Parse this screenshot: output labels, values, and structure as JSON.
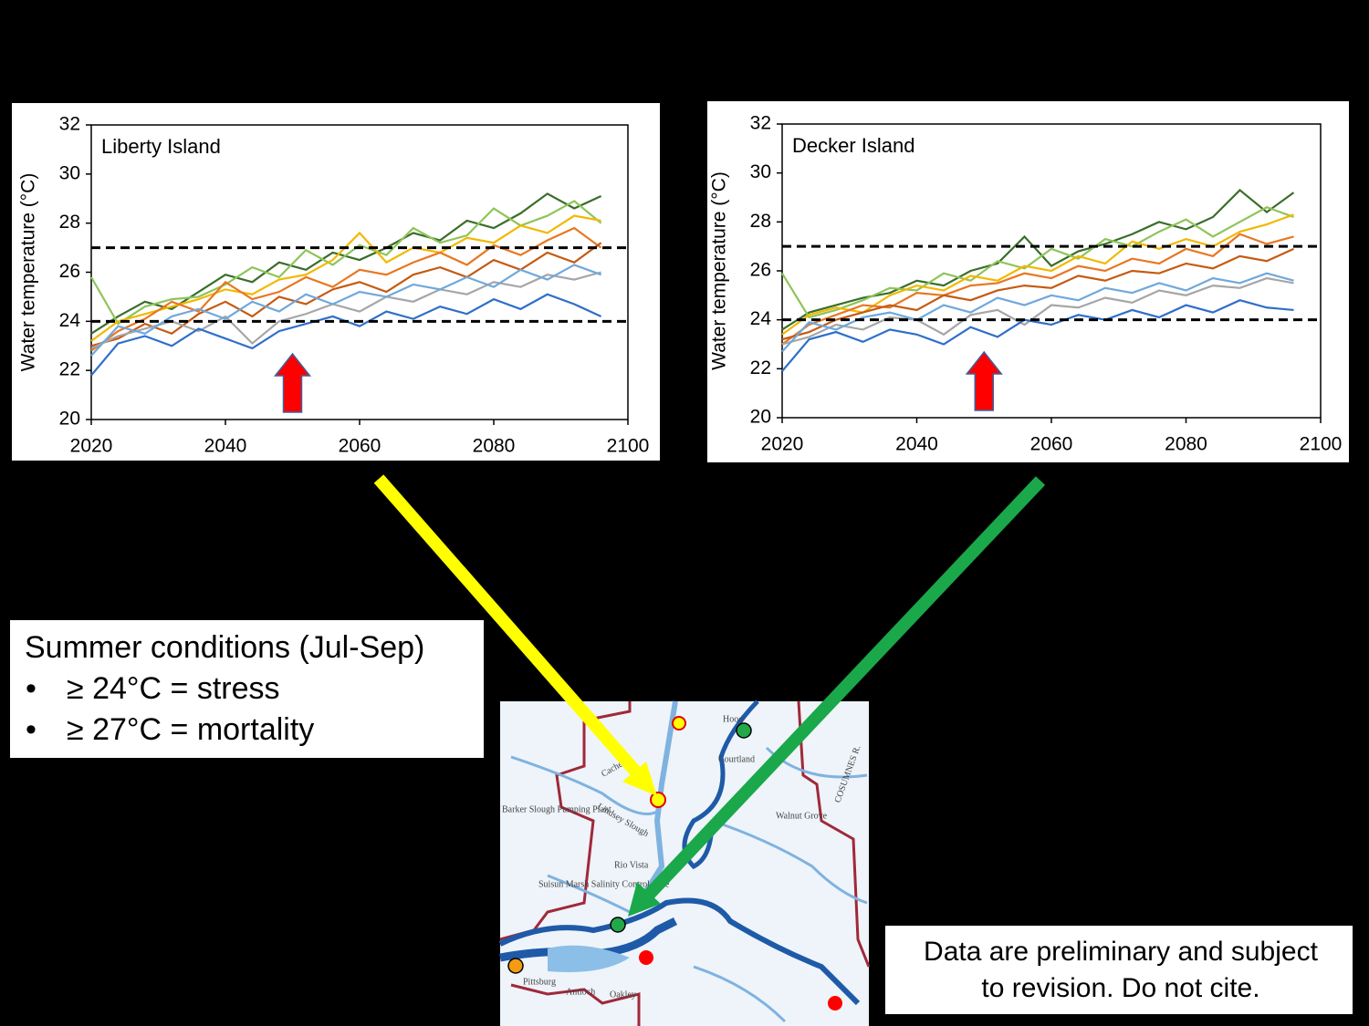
{
  "chart_data": [
    {
      "type": "line",
      "title": "Liberty Island",
      "y_label": "Water temperature (°C)",
      "x": [
        2020,
        2024,
        2028,
        2032,
        2036,
        2040,
        2044,
        2048,
        2052,
        2056,
        2060,
        2064,
        2068,
        2072,
        2076,
        2080,
        2084,
        2088,
        2092,
        2096
      ],
      "xlim": [
        2020,
        2100
      ],
      "xticks": [
        2020,
        2040,
        2060,
        2080,
        2100
      ],
      "ylim": [
        20,
        32
      ],
      "yticks": [
        20,
        22,
        24,
        26,
        28,
        30,
        32
      ],
      "hlines": [
        27,
        24
      ],
      "arrow_x": 2050,
      "series": [
        {
          "color": "#3a6e2a",
          "values": [
            23.5,
            24.2,
            24.8,
            24.5,
            25.2,
            25.9,
            25.6,
            26.4,
            26.1,
            26.8,
            26.5,
            27.0,
            27.6,
            27.3,
            28.1,
            27.8,
            28.4,
            29.2,
            28.6,
            29.1
          ]
        },
        {
          "color": "#8fc45a",
          "values": [
            25.8,
            23.9,
            24.6,
            24.9,
            25.0,
            25.5,
            26.2,
            25.8,
            26.9,
            26.3,
            27.1,
            26.7,
            27.8,
            27.2,
            27.5,
            28.6,
            27.9,
            28.3,
            28.9,
            28.0
          ]
        },
        {
          "color": "#f2b800",
          "values": [
            23.2,
            24.0,
            24.3,
            24.6,
            24.9,
            25.3,
            25.1,
            25.7,
            25.9,
            26.5,
            27.6,
            26.4,
            27.0,
            26.8,
            27.4,
            27.2,
            27.9,
            27.6,
            28.3,
            28.1
          ]
        },
        {
          "color": "#e87722",
          "values": [
            22.8,
            23.6,
            24.1,
            24.8,
            24.4,
            25.6,
            24.9,
            25.2,
            25.8,
            25.4,
            26.1,
            25.9,
            26.4,
            26.8,
            26.3,
            27.1,
            26.7,
            27.3,
            27.8,
            27.0
          ]
        },
        {
          "color": "#c55a11",
          "values": [
            23.0,
            23.3,
            23.9,
            23.5,
            24.3,
            24.8,
            24.2,
            25.0,
            24.7,
            25.3,
            25.6,
            25.2,
            25.9,
            26.2,
            25.8,
            26.5,
            26.1,
            26.8,
            26.4,
            27.2
          ]
        },
        {
          "color": "#a6a6a6",
          "values": [
            22.9,
            23.4,
            23.7,
            24.0,
            23.6,
            24.2,
            23.1,
            24.0,
            24.3,
            24.7,
            24.4,
            25.0,
            24.8,
            25.3,
            25.1,
            25.6,
            25.4,
            25.9,
            25.7,
            26.0
          ]
        },
        {
          "color": "#6fa8dc",
          "values": [
            22.6,
            23.8,
            23.5,
            24.2,
            24.5,
            24.1,
            24.8,
            24.4,
            25.1,
            24.7,
            25.2,
            25.0,
            25.5,
            25.3,
            25.8,
            25.4,
            26.1,
            25.7,
            26.3,
            25.9
          ]
        },
        {
          "color": "#2f6fc9",
          "values": [
            21.8,
            23.1,
            23.4,
            23.0,
            23.7,
            23.3,
            22.9,
            23.6,
            23.9,
            24.2,
            23.8,
            24.4,
            24.1,
            24.6,
            24.3,
            24.9,
            24.5,
            25.1,
            24.7,
            24.2
          ]
        }
      ]
    },
    {
      "type": "line",
      "title": "Decker Island",
      "y_label": "Water temperature (°C)",
      "x": [
        2020,
        2024,
        2028,
        2032,
        2036,
        2040,
        2044,
        2048,
        2052,
        2056,
        2060,
        2064,
        2068,
        2072,
        2076,
        2080,
        2084,
        2088,
        2092,
        2096
      ],
      "xlim": [
        2020,
        2100
      ],
      "xticks": [
        2020,
        2040,
        2060,
        2080,
        2100
      ],
      "ylim": [
        20,
        32
      ],
      "yticks": [
        20,
        22,
        24,
        26,
        28,
        30,
        32
      ],
      "hlines": [
        27,
        24
      ],
      "arrow_x": 2050,
      "series": [
        {
          "color": "#3a6e2a",
          "values": [
            23.6,
            24.3,
            24.6,
            24.9,
            25.1,
            25.6,
            25.4,
            26.0,
            26.3,
            27.4,
            26.2,
            26.8,
            27.1,
            27.5,
            28.0,
            27.7,
            28.2,
            29.3,
            28.4,
            29.2
          ]
        },
        {
          "color": "#8fc45a",
          "values": [
            25.9,
            24.1,
            24.4,
            24.8,
            25.3,
            25.2,
            25.9,
            25.6,
            26.4,
            26.1,
            26.9,
            26.5,
            27.3,
            27.0,
            27.6,
            28.1,
            27.4,
            28.0,
            28.6,
            28.2
          ]
        },
        {
          "color": "#f2b800",
          "values": [
            23.4,
            24.2,
            24.5,
            24.3,
            25.0,
            25.4,
            25.2,
            25.8,
            25.6,
            26.2,
            26.0,
            26.6,
            26.3,
            27.2,
            26.9,
            27.3,
            27.0,
            27.6,
            27.9,
            28.3
          ]
        },
        {
          "color": "#e87722",
          "values": [
            23.0,
            23.8,
            24.2,
            24.6,
            24.5,
            25.1,
            25.0,
            25.4,
            25.5,
            25.9,
            25.7,
            26.2,
            26.0,
            26.5,
            26.3,
            26.9,
            26.6,
            27.5,
            27.1,
            27.4
          ]
        },
        {
          "color": "#c55a11",
          "values": [
            23.2,
            23.5,
            24.0,
            24.3,
            24.6,
            24.4,
            25.0,
            24.8,
            25.2,
            25.4,
            25.3,
            25.8,
            25.6,
            26.0,
            25.9,
            26.3,
            26.1,
            26.6,
            26.4,
            26.9
          ]
        },
        {
          "color": "#a6a6a6",
          "values": [
            23.0,
            23.3,
            23.8,
            23.6,
            24.1,
            24.0,
            23.4,
            24.2,
            24.4,
            23.8,
            24.6,
            24.5,
            24.9,
            24.7,
            25.2,
            25.0,
            25.4,
            25.3,
            25.7,
            25.5
          ]
        },
        {
          "color": "#6fa8dc",
          "values": [
            22.7,
            23.9,
            23.6,
            24.1,
            24.3,
            24.0,
            24.6,
            24.3,
            24.9,
            24.6,
            25.0,
            24.8,
            25.3,
            25.1,
            25.5,
            25.2,
            25.7,
            25.5,
            25.9,
            25.6
          ]
        },
        {
          "color": "#2f6fc9",
          "values": [
            21.9,
            23.2,
            23.5,
            23.1,
            23.6,
            23.4,
            23.0,
            23.7,
            23.3,
            24.0,
            23.8,
            24.2,
            24.0,
            24.4,
            24.1,
            24.6,
            24.3,
            24.8,
            24.5,
            24.4
          ]
        }
      ]
    }
  ],
  "notes": {
    "heading": "Summer conditions (Jul-Sep)",
    "bullets": [
      "≥ 24°C = stress",
      "≥ 27°C = mortality"
    ],
    "disclaimer": [
      "Data are preliminary and subject",
      "to revision. Do not cite."
    ]
  },
  "map": {
    "labels": [
      "Hood",
      "Courtland",
      "Walnut Grove",
      "Rio Vista",
      "Lindsey Slough",
      "Barker Slough Pumping Plant",
      "Suisun Marsh Salinity Control Gate",
      "Pittsburg",
      "Antioch",
      "Oakley",
      "Cache",
      "COSUMNES R."
    ]
  }
}
